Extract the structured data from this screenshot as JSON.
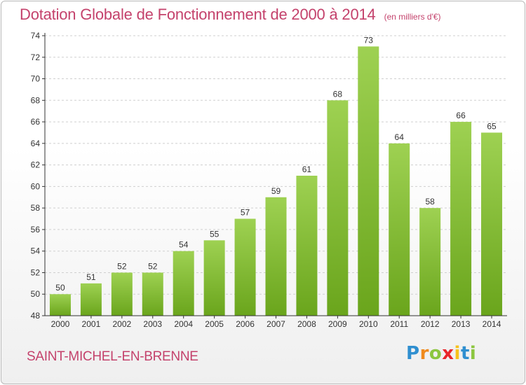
{
  "header": {
    "title": "Dotation Globale de Fonctionnement de 2000 à 2014",
    "unit": "(en milliers d'€)"
  },
  "footer": {
    "place": "SAINT-MICHEL-EN-BRENNE",
    "logo": "Proxiti"
  },
  "colors": {
    "title": "#c4426c",
    "bar_light": "#9ed152",
    "bar_dark": "#6aa51c",
    "axis": "#333333",
    "grid": "#cfcfcf"
  },
  "chart_data": {
    "type": "bar",
    "categories": [
      "2000",
      "2001",
      "2002",
      "2003",
      "2004",
      "2005",
      "2006",
      "2007",
      "2008",
      "2009",
      "2010",
      "2011",
      "2012",
      "2013",
      "2014"
    ],
    "values": [
      50,
      51,
      52,
      52,
      54,
      55,
      57,
      59,
      61,
      68,
      73,
      64,
      58,
      66,
      65
    ],
    "title": "Dotation Globale de Fonctionnement de 2000 à 2014",
    "subtitle": "(en milliers d'€)",
    "ylim": [
      48,
      74
    ],
    "yticks": [
      48,
      50,
      52,
      54,
      56,
      58,
      60,
      62,
      64,
      66,
      68,
      70,
      72,
      74
    ],
    "grid": "horizontal dashed",
    "data_labels": true
  }
}
